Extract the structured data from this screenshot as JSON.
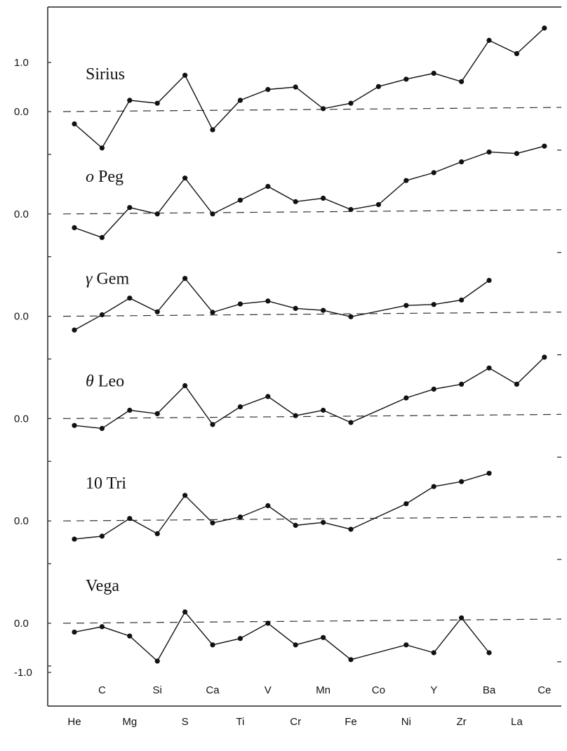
{
  "chart_data": {
    "type": "line",
    "y_tick_labels_top": [
      "1.0",
      "0.0"
    ],
    "y_tick_label_zero": "0.0",
    "y_tick_labels_bottom": [
      "0.0",
      "-1.0"
    ],
    "x_labels_top_row": [
      "C",
      "Si",
      "Ca",
      "V",
      "Mn",
      "Co",
      "Y",
      "Ba",
      "Ce"
    ],
    "x_labels_bottom_row": [
      "He",
      "Mg",
      "S",
      "Ti",
      "Cr",
      "Fe",
      "Ni",
      "Zr",
      "La"
    ],
    "elements": [
      "He",
      "C",
      "Mg",
      "Si",
      "S",
      "Ca",
      "Ti",
      "V",
      "Cr",
      "Mn",
      "Fe",
      "Co",
      "Ni",
      "Y",
      "Zr",
      "Ba",
      "La",
      "Ce"
    ],
    "panels": [
      {
        "prefix": "",
        "name": "Sirius",
        "values": [
          -0.25,
          -0.74,
          0.23,
          0.17,
          0.74,
          -0.37,
          0.23,
          0.45,
          0.5,
          0.06,
          0.17,
          0.51,
          0.66,
          0.78,
          0.61,
          1.45,
          1.18,
          1.7
        ]
      },
      {
        "prefix": "o",
        "name": "Peg",
        "values": [
          -0.28,
          -0.48,
          0.13,
          0.0,
          0.73,
          0.0,
          0.28,
          0.56,
          0.25,
          0.32,
          0.09,
          0.19,
          0.68,
          0.84,
          1.06,
          1.26,
          1.23,
          1.38
        ]
      },
      {
        "prefix": "γ",
        "name": "Gem",
        "values": [
          -0.28,
          0.03,
          0.37,
          0.09,
          0.77,
          0.08,
          0.25,
          0.31,
          0.16,
          0.12,
          -0.01,
          null,
          0.22,
          0.24,
          0.33,
          0.73,
          null,
          null
        ]
      },
      {
        "prefix": "θ",
        "name": "Leo",
        "values": [
          -0.14,
          -0.2,
          0.17,
          0.1,
          0.67,
          -0.12,
          0.24,
          0.45,
          0.06,
          0.17,
          -0.08,
          null,
          0.42,
          0.6,
          0.7,
          1.03,
          0.7,
          1.25
        ]
      },
      {
        "prefix": "",
        "name": "10 Tri",
        "values": [
          -0.37,
          -0.31,
          0.05,
          -0.26,
          0.52,
          -0.04,
          0.08,
          0.31,
          -0.09,
          -0.03,
          -0.17,
          null,
          0.35,
          0.7,
          0.8,
          0.97,
          null,
          null
        ]
      },
      {
        "prefix": "",
        "name": "Vega",
        "values": [
          -0.18,
          -0.07,
          -0.26,
          -0.77,
          0.23,
          -0.44,
          -0.31,
          0.0,
          -0.44,
          -0.29,
          -0.74,
          null,
          -0.44,
          -0.6,
          0.11,
          -0.6,
          null,
          null
        ]
      }
    ],
    "zero_lines": "dashed",
    "grid": false,
    "legend": "none"
  }
}
